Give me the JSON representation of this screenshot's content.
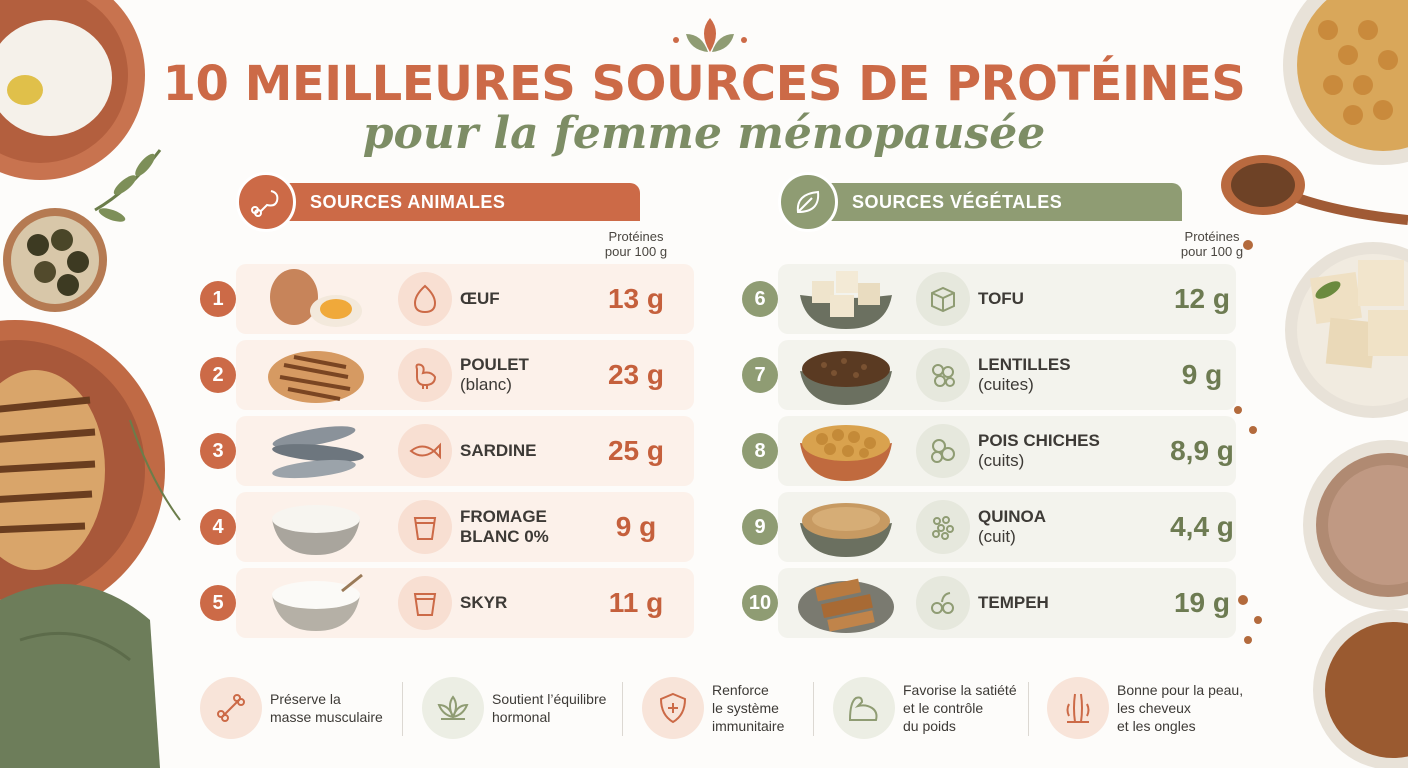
{
  "title": "10 MEILLEURES SOURCES DE PROTÉINES",
  "subtitle": "pour la femme ménopausée",
  "animal": {
    "header": "SOURCES ANIMALES",
    "column_header_line1": "Protéines",
    "column_header_line2": "pour 100 g",
    "items": [
      {
        "num": "1",
        "name": "ŒUF",
        "sub": "",
        "value": "13 g",
        "icon": "egg-icon"
      },
      {
        "num": "2",
        "name": "POULET",
        "sub": "(blanc)",
        "value": "23 g",
        "icon": "chicken-icon"
      },
      {
        "num": "3",
        "name": "SARDINE",
        "sub": "",
        "value": "25 g",
        "icon": "fish-icon"
      },
      {
        "num": "4",
        "name": "FROMAGE",
        "sub": "BLANC 0%",
        "value": "9 g",
        "icon": "cup-icon"
      },
      {
        "num": "5",
        "name": "SKYR",
        "sub": "",
        "value": "11 g",
        "icon": "cup-icon"
      }
    ]
  },
  "vegetal": {
    "header": "SOURCES VÉGÉTALES",
    "column_header_line1": "Protéines",
    "column_header_line2": "pour 100 g",
    "items": [
      {
        "num": "6",
        "name": "TOFU",
        "sub": "",
        "value": "12 g",
        "icon": "cube-icon"
      },
      {
        "num": "7",
        "name": "LENTILLES",
        "sub": "(cuites)",
        "value": "9 g",
        "icon": "lentils-icon"
      },
      {
        "num": "8",
        "name": "POIS CHICHES",
        "sub": "(cuits)",
        "value": "8,9 g",
        "icon": "chickpeas-icon"
      },
      {
        "num": "9",
        "name": "QUINOA",
        "sub": "(cuit)",
        "value": "4,4 g",
        "icon": "grains-icon"
      },
      {
        "num": "10",
        "name": "TEMPEH",
        "sub": "",
        "value": "19 g",
        "icon": "tempeh-icon"
      }
    ]
  },
  "benefits": [
    {
      "line1": "Préserve la",
      "line2": "masse musculaire",
      "line3": "",
      "icon": "bone-icon"
    },
    {
      "line1": "Soutient l’équilibre",
      "line2": "hormonal",
      "line3": "",
      "icon": "lotus-icon"
    },
    {
      "line1": "Renforce",
      "line2": "le système",
      "line3": "immunitaire",
      "icon": "shield-icon"
    },
    {
      "line1": "Favorise la satiété",
      "line2": "et le contrôle",
      "line3": "du poids",
      "icon": "muscle-icon"
    },
    {
      "line1": "Bonne pour la peau,",
      "line2": "les cheveux",
      "line3": "et les ongles",
      "icon": "hair-icon"
    }
  ],
  "colors": {
    "terracotta": "#cc6a47",
    "sage": "#8f9c73",
    "background": "#fdfcfa"
  }
}
